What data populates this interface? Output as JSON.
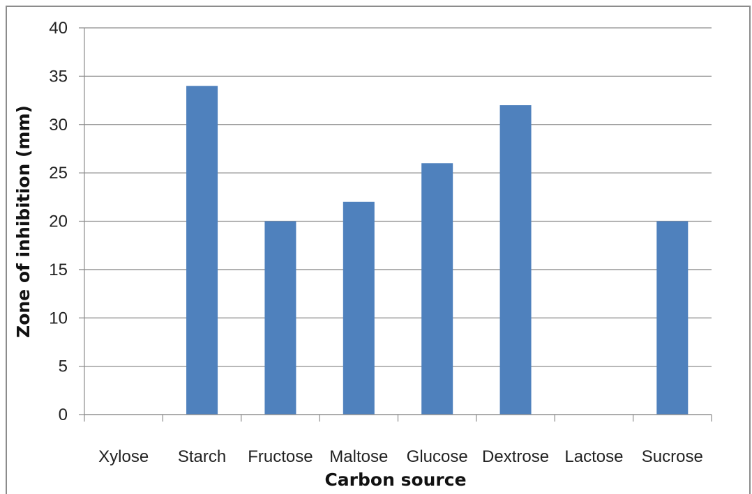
{
  "chart_data": {
    "type": "bar",
    "title": "",
    "xlabel": "Carbon source",
    "ylabel": "Zone of inhibition (mm)",
    "categories": [
      "Xylose",
      "Starch",
      "Fructose",
      "Maltose",
      "Glucose",
      "Dextrose",
      "Lactose",
      "Sucrose"
    ],
    "values": [
      0,
      34,
      20,
      22,
      26,
      32,
      0,
      20
    ],
    "ylim": [
      0,
      40
    ],
    "yticks": [
      0,
      5,
      10,
      15,
      20,
      25,
      30,
      35,
      40
    ],
    "grid": true,
    "legend": "none",
    "bar_color": "#4f81bd",
    "grid_color": "#8c8c8c"
  }
}
